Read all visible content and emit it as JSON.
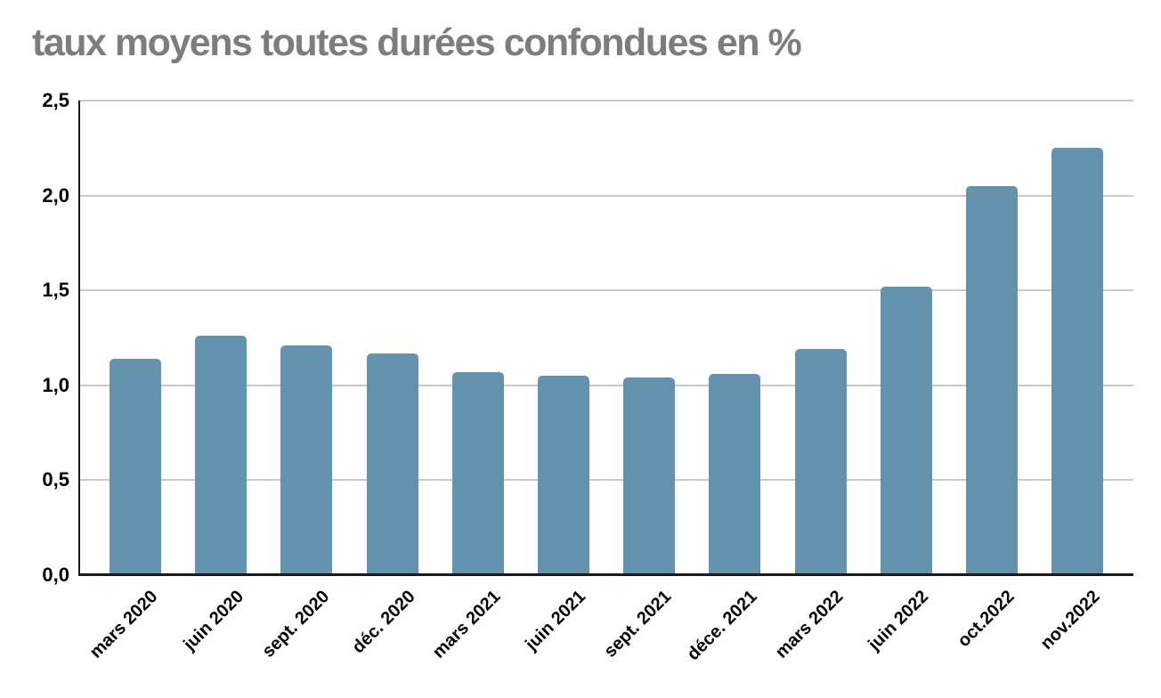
{
  "chart_data": {
    "type": "bar",
    "title": "taux moyens toutes durées confondues en %",
    "categories": [
      "mars 2020",
      "juin 2020",
      "sept. 2020",
      "déc. 2020",
      "mars 2021",
      "juin 2021",
      "sept. 2021",
      "déce. 2021",
      "mars 2022",
      "juin 2022",
      "oct.2022",
      "nov.2022"
    ],
    "values": [
      1.14,
      1.26,
      1.21,
      1.17,
      1.07,
      1.05,
      1.04,
      1.06,
      1.19,
      1.52,
      2.05,
      2.25
    ],
    "xlabel": "",
    "ylabel": "",
    "ylim": [
      0,
      2.5
    ],
    "ytick_values": [
      0,
      0.5,
      1.0,
      1.5,
      2.0,
      2.5
    ],
    "ytick_labels": [
      "0,0",
      "0,5",
      "1,0",
      "1,5",
      "2,0",
      "2,5"
    ],
    "grid": true,
    "legend": "none",
    "colors": {
      "bar": "#6592ac",
      "title": "#7d7d7d",
      "grid": "#c9c9c9",
      "axis": "#1a1a1a",
      "tick_labels": "#000000",
      "background": "#ffffff"
    }
  }
}
